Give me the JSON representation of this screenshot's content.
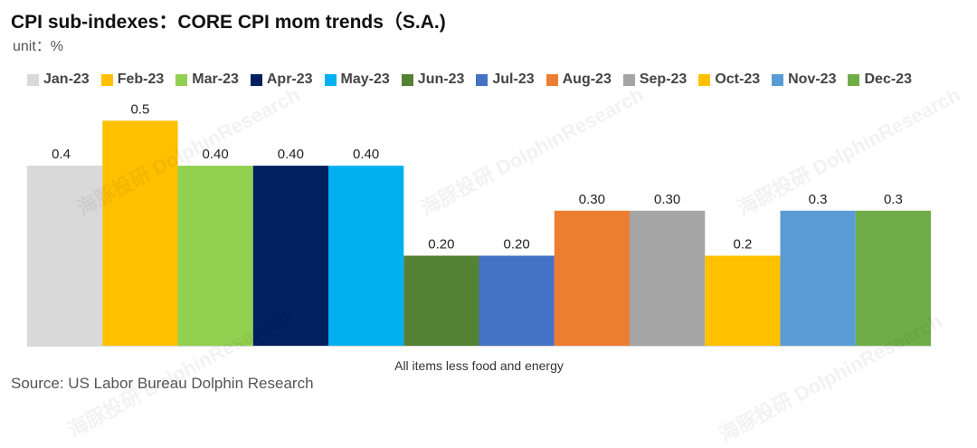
{
  "title": "CPI sub-indexes：CORE CPI mom trends（S.A.)",
  "unit": "unit：%",
  "source": "Source: US Labor Bureau Dolphin Research",
  "watermark": "海豚投研 DolphinResearch",
  "chart_data": {
    "type": "bar",
    "title": "CPI sub-indexes：CORE CPI mom trends（S.A.)",
    "xlabel": "All items less food and energy",
    "ylabel": "",
    "ylim": [
      0,
      0.55
    ],
    "grid": false,
    "legend_position": "top",
    "categories": [
      "All items less food and energy"
    ],
    "series": [
      {
        "name": "Jan-23",
        "value": 0.4,
        "label": "0.4",
        "color": "#d9d9d9"
      },
      {
        "name": "Feb-23",
        "value": 0.5,
        "label": "0.5",
        "color": "#ffc000"
      },
      {
        "name": "Mar-23",
        "value": 0.4,
        "label": "0.40",
        "color": "#92d050"
      },
      {
        "name": "Apr-23",
        "value": 0.4,
        "label": "0.40",
        "color": "#002060"
      },
      {
        "name": "May-23",
        "value": 0.4,
        "label": "0.40",
        "color": "#00b0f0"
      },
      {
        "name": "Jun-23",
        "value": 0.2,
        "label": "0.20",
        "color": "#548235"
      },
      {
        "name": "Jul-23",
        "value": 0.2,
        "label": "0.20",
        "color": "#4472c4"
      },
      {
        "name": "Aug-23",
        "value": 0.3,
        "label": "0.30",
        "color": "#ed7d31"
      },
      {
        "name": "Sep-23",
        "value": 0.3,
        "label": "0.30",
        "color": "#a5a5a5"
      },
      {
        "name": "Oct-23",
        "value": 0.2,
        "label": "0.2",
        "color": "#ffc000"
      },
      {
        "name": "Nov-23",
        "value": 0.3,
        "label": "0.3",
        "color": "#5b9bd5"
      },
      {
        "name": "Dec-23",
        "value": 0.3,
        "label": "0.3",
        "color": "#70ad47"
      }
    ]
  }
}
